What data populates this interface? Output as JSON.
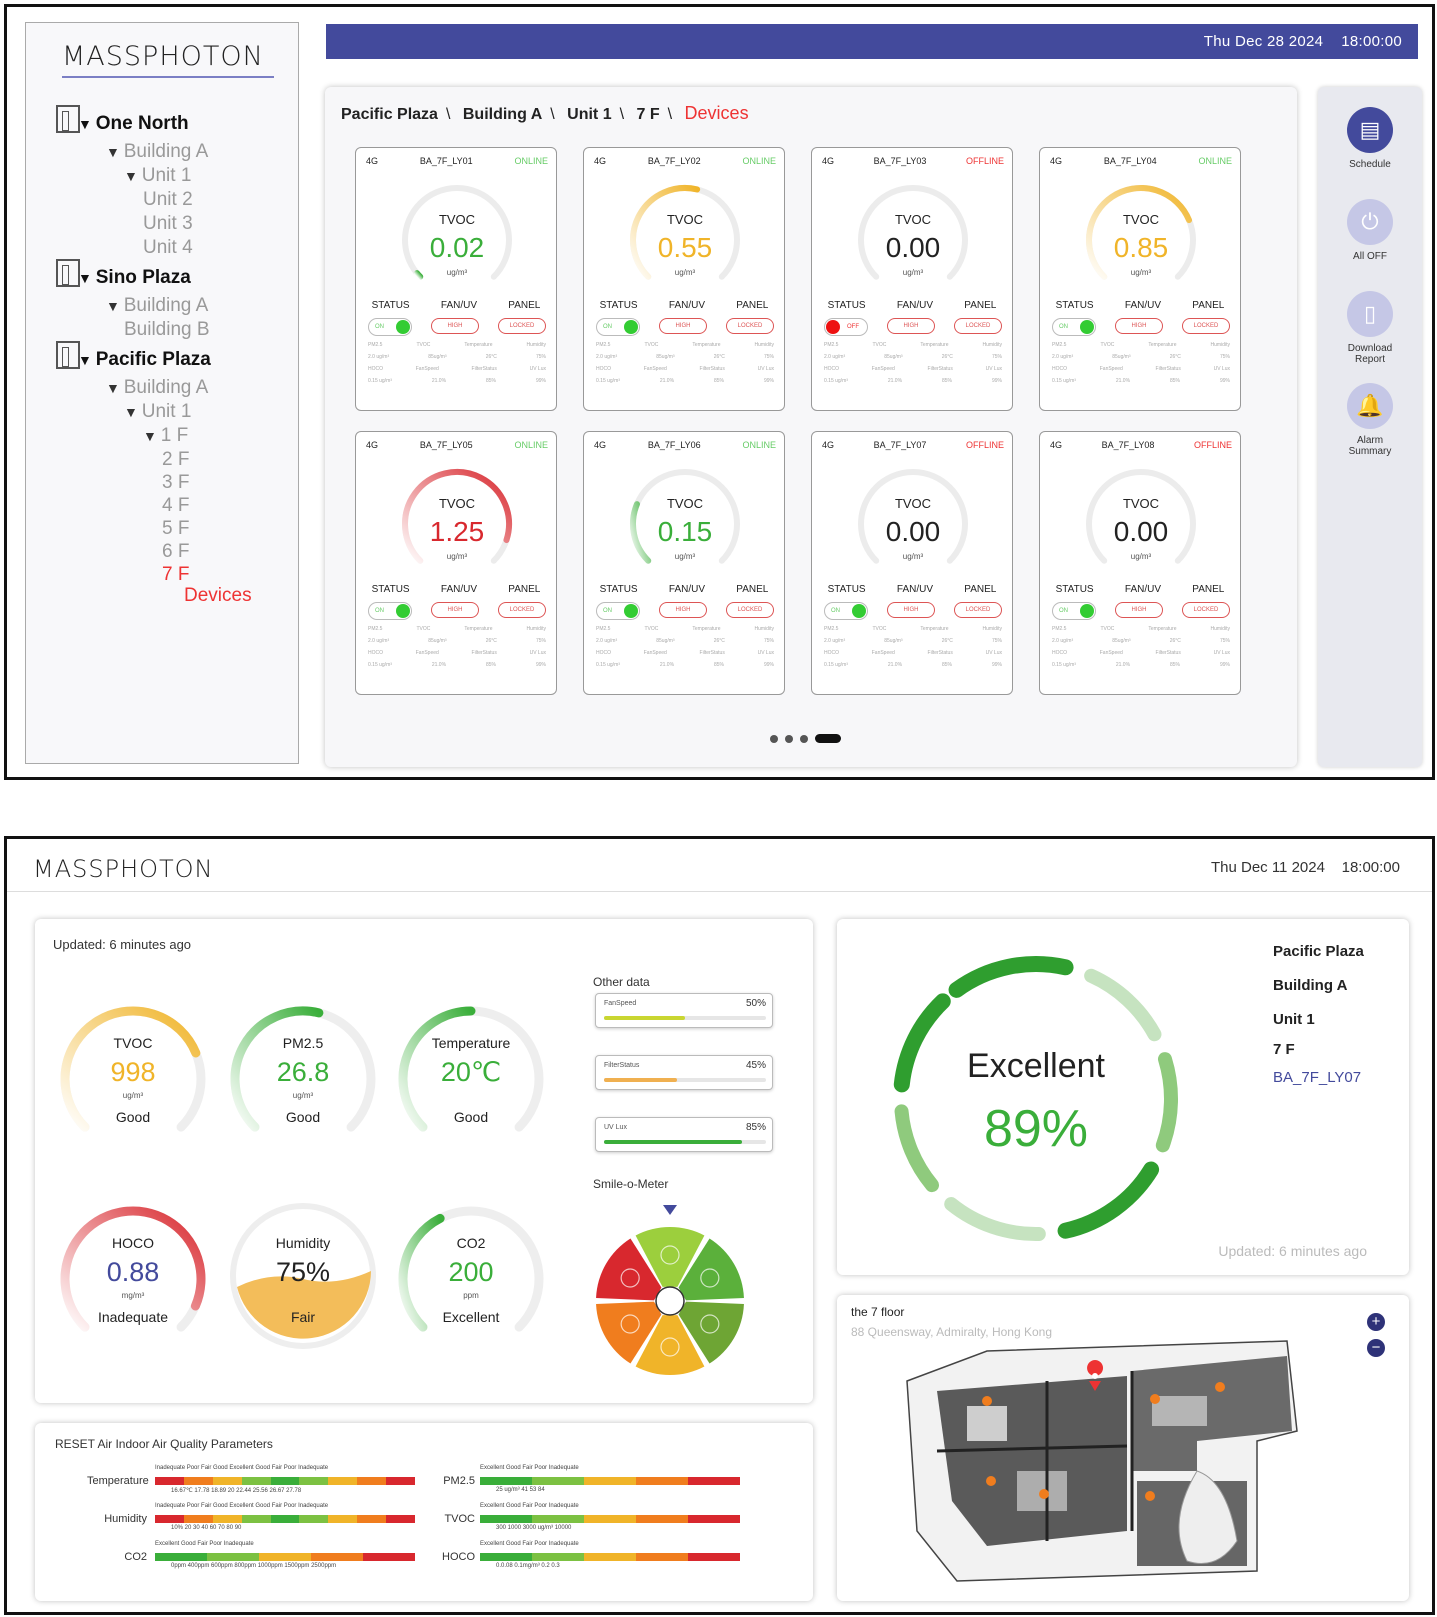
{
  "screen1": {
    "logo": "MASSPHOTON",
    "datetime": "Thu Dec 28 2024    18:00:00",
    "tree": [
      {
        "label": "One North",
        "level": 0,
        "kind": "top",
        "icon": "building-icon"
      },
      {
        "label": "Building A",
        "level": 1,
        "kind": "open"
      },
      {
        "label": "Unit 1",
        "level": 2,
        "kind": "open"
      },
      {
        "label": "Unit 2",
        "level": 3,
        "kind": "leaf"
      },
      {
        "label": "Unit 3",
        "level": 3,
        "kind": "leaf"
      },
      {
        "label": "Unit 4",
        "level": 3,
        "kind": "leaf"
      },
      {
        "label": "Sino Plaza",
        "level": 0,
        "kind": "top",
        "icon": "building-icon"
      },
      {
        "label": "Building A",
        "level": 1,
        "kind": "open"
      },
      {
        "label": "Building B",
        "level": 2,
        "kind": "leaf"
      },
      {
        "label": "Pacific Plaza",
        "level": 0,
        "kind": "top",
        "icon": "building-icon"
      },
      {
        "label": "Building A",
        "level": 1,
        "kind": "open"
      },
      {
        "label": "Unit 1",
        "level": 2,
        "kind": "open"
      },
      {
        "label": "1 F",
        "level": 3,
        "kind": "open"
      },
      {
        "label": "2 F",
        "level": 4,
        "kind": "leaf"
      },
      {
        "label": "3 F",
        "level": 4,
        "kind": "leaf"
      },
      {
        "label": "4 F",
        "level": 4,
        "kind": "leaf"
      },
      {
        "label": "5 F",
        "level": 4,
        "kind": "leaf"
      },
      {
        "label": "6 F",
        "level": 4,
        "kind": "leaf"
      },
      {
        "label": "7 F",
        "level": 4,
        "kind": "red"
      },
      {
        "label": "Devices",
        "level": 5,
        "kind": "red"
      }
    ],
    "breadcrumb": {
      "p1": "Pacific Plaza",
      "p2": "Building A",
      "p3": "Unit 1",
      "p4": "7 F",
      "current": "Devices",
      "sep": "\\"
    },
    "card_labels": {
      "gauge": "TVOC",
      "unit": "ug/m³",
      "status": "STATUS",
      "fan": "FAN/UV",
      "panel": "PANEL",
      "high": "HIGH",
      "locked": "LOCKED",
      "on": "ON",
      "off": "OFF",
      "network": "4G"
    },
    "mini_labels": {
      "row1": [
        "PM2.5",
        "TVOC",
        "Temperature",
        "Humidity"
      ],
      "row2": [
        "2.0 ug/m³",
        "85ug/m³",
        "26°C",
        "75%"
      ],
      "row3": [
        "HOCO",
        "FanSpeed",
        "FilterStatus",
        "UV Lux"
      ],
      "row4": [
        "0.15 ug/m³",
        "21.0%",
        "85%",
        "99%"
      ]
    },
    "devices": [
      {
        "id": "BA_7F_LY01",
        "status": "ONLINE",
        "value": "0.02",
        "level": 0.02,
        "color": "#3aae3a",
        "power": "on"
      },
      {
        "id": "BA_7F_LY02",
        "status": "ONLINE",
        "value": "0.55",
        "level": 0.55,
        "color": "#f0b429",
        "power": "on"
      },
      {
        "id": "BA_7F_LY03",
        "status": "OFFLINE",
        "value": "0.00",
        "level": 0,
        "color": "#222",
        "power": "off"
      },
      {
        "id": "BA_7F_LY04",
        "status": "ONLINE",
        "value": "0.85",
        "level": 0.75,
        "color": "#f0b429",
        "power": "on"
      },
      {
        "id": "BA_7F_LY05",
        "status": "ONLINE",
        "value": "1.25",
        "level": 0.9,
        "color": "#d8282e",
        "power": "on"
      },
      {
        "id": "BA_7F_LY06",
        "status": "ONLINE",
        "value": "0.15",
        "level": 0.25,
        "color": "#3aae3a",
        "power": "on"
      },
      {
        "id": "BA_7F_LY07",
        "status": "OFFLINE",
        "value": "0.00",
        "level": 0,
        "color": "#222",
        "power": "on"
      },
      {
        "id": "BA_7F_LY08",
        "status": "OFFLINE",
        "value": "0.00",
        "level": 0,
        "color": "#222",
        "power": "on"
      }
    ],
    "pagination": {
      "pages": 4,
      "current": 4
    },
    "actions": [
      {
        "label": "Schedule",
        "icon": "schedule-icon",
        "active": true
      },
      {
        "label": "All OFF",
        "icon": "power-icon",
        "active": false
      },
      {
        "label": "Download\nReport",
        "icon": "report-icon",
        "active": false
      },
      {
        "label": "Alarm\nSummary",
        "icon": "bell-icon",
        "active": false
      }
    ]
  },
  "screen2": {
    "logo": "MASSPHOTON",
    "datetime": "Thu Dec 11 2024    18:00:00",
    "updated": "Updated:  6 minutes  ago",
    "gauges": [
      {
        "label": "TVOC",
        "value": "998",
        "unit": "ug/m³",
        "status": "Good",
        "level": 0.75,
        "color": "#f0b429"
      },
      {
        "label": "PM2.5",
        "value": "26.8",
        "unit": "ug/m³",
        "status": "Good",
        "level": 0.55,
        "color": "#3aae3a"
      },
      {
        "label": "Temperature",
        "value": "20℃",
        "unit": "",
        "status": "Good",
        "level": 0.5,
        "color": "#3aae3a"
      },
      {
        "label": "HOCO",
        "value": "0.88",
        "unit": "mg/m³",
        "status": "Inadequate",
        "level": 0.92,
        "color": "#d8282e",
        "value_color": "#434a9c"
      },
      {
        "label": "Humidity",
        "value": "75%",
        "unit": "",
        "status": "Fair",
        "level": 0.75,
        "color": "#f0b429"
      },
      {
        "label": "CO2",
        "value": "200",
        "unit": "ppm",
        "status": "Excellent",
        "level": 0.4,
        "color": "#3aae3a"
      }
    ],
    "other_data": {
      "title": "Other data",
      "items": [
        {
          "name": "FanSpeed",
          "pct": "50%",
          "fill": 0.5,
          "color": "#c9d631"
        },
        {
          "name": "FilterStatus",
          "pct": "45%",
          "fill": 0.45,
          "color": "#f0b050"
        },
        {
          "name": "UV Lux",
          "pct": "85%",
          "fill": 0.85,
          "color": "#3aae3a"
        }
      ]
    },
    "smile": {
      "title": "Smile-o-Meter"
    },
    "score": {
      "label": "Excellent",
      "value": "89%",
      "updated": "Updated:  6 minutes  ago"
    },
    "location": {
      "l1": "Pacific Plaza",
      "l2": "Building A",
      "l3": "Unit 1",
      "l4": "7 F",
      "device": "BA_7F_LY07"
    },
    "map": {
      "title": "the 7 floor",
      "address": "88 Queensway, Admiralty, Hong Kong"
    },
    "params": {
      "title": "RESET Air   Indoor Air Quality Parameters",
      "rows": [
        {
          "name": "Temperature",
          "top": "Inadequate  Poor  Fair  Good  Excellent  Good  Fair  Poor  Inadequate",
          "bottom": "16.67℃  17.78  18.89  20  22.44  25.56  26.67  27.78"
        },
        {
          "name": "Humidity",
          "top": "Inadequate  Poor  Fair  Good  Excellent  Good  Fair  Poor  Inadequate",
          "bottom": "10%  20  30  40  60  70  80  90"
        },
        {
          "name": "CO2",
          "top": "Excellent  Good  Fair  Poor  Inadequate",
          "bottom": "0ppm 400ppm  600ppm  800ppm  1000ppm  1500ppm  2500ppm"
        },
        {
          "name": "PM2.5",
          "top": "Excellent  Good  Fair  Poor  Inadequate",
          "bottom": "25 ug/m³  41  53  84"
        },
        {
          "name": "TVOC",
          "top": "Excellent  Good  Fair  Poor  Inadequate",
          "bottom": "300  1000  3000 ug/m³  10000"
        },
        {
          "name": "HOCO",
          "top": "Excellent  Good  Fair  Poor  Inadequate",
          "bottom": "0.0.08  0.1mg/m³  0.2  0.3"
        }
      ]
    }
  }
}
